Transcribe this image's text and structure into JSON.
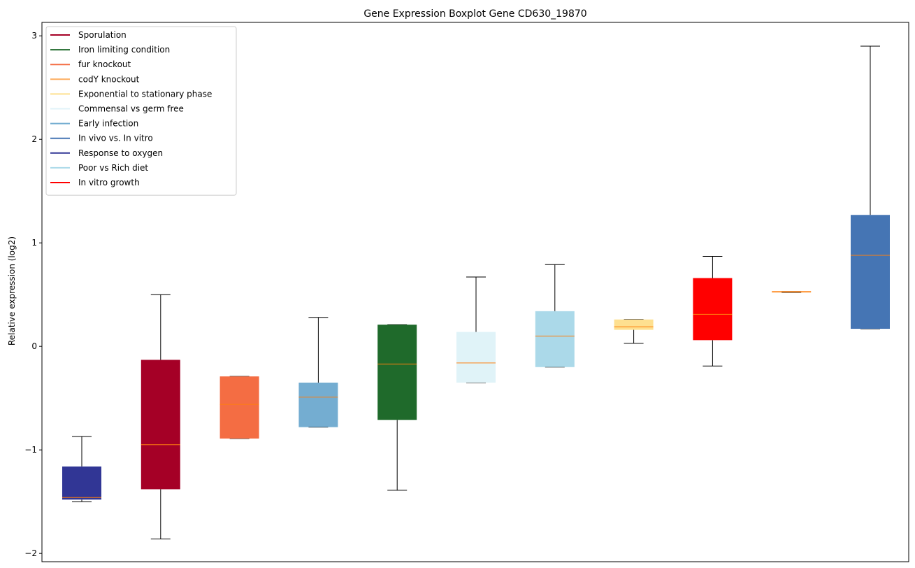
{
  "chart_data": {
    "type": "box",
    "title": "Gene Expression Boxplot Gene CD630_19870",
    "ylabel": "Relative expression (log2)",
    "xlabel": "",
    "ylim": [
      -2.08,
      3.13
    ],
    "yticks": [
      -2,
      -1,
      0,
      1,
      2,
      3
    ],
    "grid": false,
    "legend_position": "upper-left",
    "median_color": "#ff7f0e",
    "legend": [
      {
        "label": "Sporulation",
        "color": "#a50026"
      },
      {
        "label": "Iron limiting condition",
        "color": "#1f6a2b"
      },
      {
        "label": "fur knockout",
        "color": "#f46d43"
      },
      {
        "label": "codY knockout",
        "color": "#fdae61"
      },
      {
        "label": "Exponential to stationary phase",
        "color": "#fee090"
      },
      {
        "label": "Commensal vs germ free",
        "color": "#e0f3f8"
      },
      {
        "label": "Early infection",
        "color": "#74add1"
      },
      {
        "label": "In vivo vs. In vitro",
        "color": "#4575b4"
      },
      {
        "label": "Response to oxygen",
        "color": "#313695"
      },
      {
        "label": "Poor vs Rich diet",
        "color": "#abd9e9"
      },
      {
        "label": "In vitro growth",
        "color": "#ff0000"
      }
    ],
    "boxes": [
      {
        "group": "Response to oxygen",
        "color": "#313695",
        "whisker_low": -1.5,
        "q1": -1.48,
        "median": -1.46,
        "q3": -1.16,
        "whisker_high": -0.87
      },
      {
        "group": "Sporulation",
        "color": "#a50026",
        "whisker_low": -1.86,
        "q1": -1.38,
        "median": -0.95,
        "q3": -0.13,
        "whisker_high": 0.5
      },
      {
        "group": "fur knockout",
        "color": "#f46d43",
        "whisker_low": -0.89,
        "q1": -0.89,
        "median": -0.56,
        "q3": -0.29,
        "whisker_high": -0.29
      },
      {
        "group": "Early infection",
        "color": "#74add1",
        "whisker_low": -0.78,
        "q1": -0.78,
        "median": -0.49,
        "q3": -0.35,
        "whisker_high": 0.28
      },
      {
        "group": "Iron limiting condition",
        "color": "#1f6a2b",
        "whisker_low": -1.39,
        "q1": -0.71,
        "median": -0.17,
        "q3": 0.21,
        "whisker_high": 0.21
      },
      {
        "group": "Commensal vs germ free",
        "color": "#e0f3f8",
        "whisker_low": -0.35,
        "q1": -0.35,
        "median": -0.16,
        "q3": 0.14,
        "whisker_high": 0.67
      },
      {
        "group": "Poor vs Rich diet",
        "color": "#abd9e9",
        "whisker_low": -0.2,
        "q1": -0.2,
        "median": 0.1,
        "q3": 0.34,
        "whisker_high": 0.79
      },
      {
        "group": "Exponential to stationary phase",
        "color": "#fee090",
        "whisker_low": 0.03,
        "q1": 0.16,
        "median": 0.19,
        "q3": 0.26,
        "whisker_high": 0.26
      },
      {
        "group": "In vitro growth",
        "color": "#ff0000",
        "whisker_low": -0.19,
        "q1": 0.06,
        "median": 0.31,
        "q3": 0.66,
        "whisker_high": 0.87
      },
      {
        "group": "codY knockout",
        "color": "#fdae61",
        "whisker_low": 0.52,
        "q1": 0.52,
        "median": 0.53,
        "q3": 0.53,
        "whisker_high": 0.53
      },
      {
        "group": "In vivo vs. In vitro",
        "color": "#4575b4",
        "whisker_low": 0.17,
        "q1": 0.17,
        "median": 0.88,
        "q3": 1.27,
        "whisker_high": 2.9
      }
    ]
  }
}
